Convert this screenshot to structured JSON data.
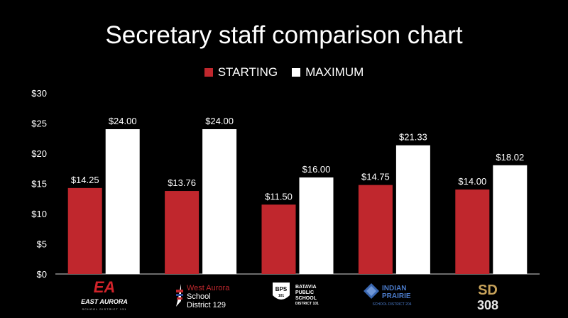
{
  "chart_data": {
    "type": "bar",
    "title": "Secretary staff comparison chart",
    "categories": [
      "East Aurora School District 131",
      "West Aurora School District 129",
      "Batavia Public School District 101",
      "Indian Prairie School District 204",
      "SD 308"
    ],
    "series": [
      {
        "name": "STARTING",
        "color": "#c0272d",
        "values": [
          14.25,
          13.76,
          11.5,
          14.75,
          14.0
        ],
        "labels": [
          "$14.25",
          "$13.76",
          "$11.50",
          "$14.75",
          "$14.00"
        ]
      },
      {
        "name": "MAXIMUM",
        "color": "#ffffff",
        "values": [
          24.0,
          24.0,
          16.0,
          21.33,
          18.02
        ],
        "labels": [
          "$24.00",
          "$24.00",
          "$16.00",
          "$21.33",
          "$18.02"
        ]
      }
    ],
    "y_ticks": [
      0,
      5,
      10,
      15,
      20,
      25,
      30
    ],
    "y_tick_labels": [
      "$0",
      "$5",
      "$10",
      "$15",
      "$20",
      "$25",
      "$30"
    ],
    "ylim": [
      0,
      30
    ],
    "xlabel": "",
    "ylabel": "",
    "legend_position": "top-center",
    "grid": false
  },
  "logos": {
    "ea": {
      "mark": "EA",
      "name": "EAST AURORA",
      "sub": "SCHOOL DISTRICT 131"
    },
    "wa": {
      "line1": "West Aurora",
      "line2": "School",
      "line3": "District 129"
    },
    "bps": {
      "badge": "BPS",
      "badge_num": "101",
      "line1": "BATAVIA",
      "line2": "PUBLIC",
      "line3": "SCHOOL",
      "line4": "DISTRICT 101"
    },
    "ip": {
      "line1": "INDIAN",
      "line2": "PRAIRIE",
      "sub": "SCHOOL DISTRICT 204"
    },
    "sd": {
      "top": "SD",
      "bottom": "308"
    }
  }
}
